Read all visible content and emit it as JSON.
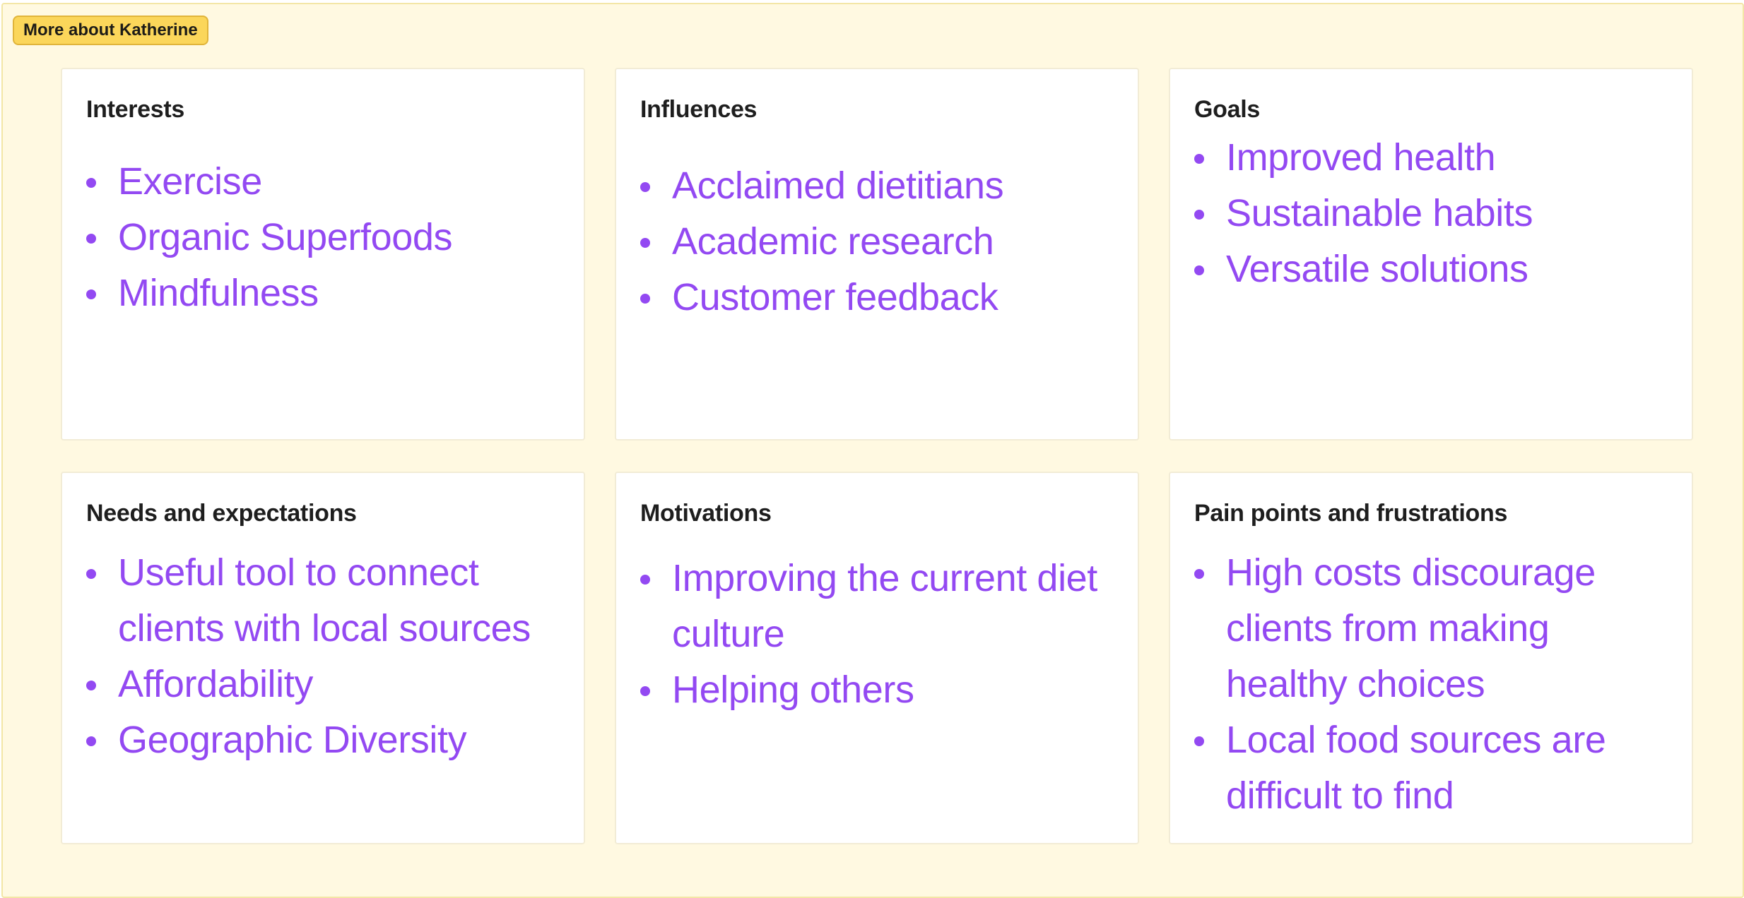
{
  "frame": {
    "tag_label": "More about Katherine"
  },
  "cards": [
    {
      "title": "Interests",
      "items": [
        "Exercise",
        "Organic Superfoods",
        "Mindfulness"
      ]
    },
    {
      "title": "Influences",
      "items": [
        "Acclaimed dietitians",
        "Academic research",
        "Customer feedback"
      ]
    },
    {
      "title": "Goals",
      "items": [
        "Improved health",
        "Sustainable habits",
        "Versatile solutions"
      ]
    },
    {
      "title": "Needs and expectations",
      "items": [
        "Useful tool to connect clients with local sources",
        "Affordability",
        "Geographic Diversity"
      ]
    },
    {
      "title": "Motivations",
      "items": [
        "Improving the current diet culture",
        "Helping others"
      ]
    },
    {
      "title": "Pain points and frustrations",
      "items": [
        "High costs discourage clients from making healthy choices",
        "Local food sources are difficult to find"
      ]
    }
  ],
  "colors": {
    "frame_background": "#fff9e1",
    "tag_background": "#fbd65a",
    "list_text": "#9349f2"
  }
}
